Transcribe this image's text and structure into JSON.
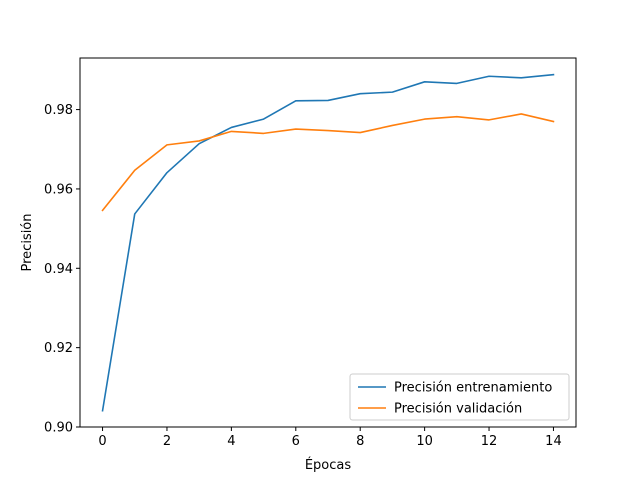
{
  "chart_data": {
    "type": "line",
    "title": "",
    "xlabel": "Épocas",
    "ylabel": "Precisión",
    "xlim": [
      -0.7,
      14.7
    ],
    "ylim": [
      0.9,
      0.993
    ],
    "xticks": [
      0,
      2,
      4,
      6,
      8,
      10,
      12,
      14
    ],
    "yticks": [
      0.9,
      0.92,
      0.94,
      0.96,
      0.98
    ],
    "ytick_labels": [
      "0.90",
      "0.92",
      "0.94",
      "0.96",
      "0.98"
    ],
    "grid": false,
    "legend_position": "lower-right",
    "x": [
      0,
      1,
      2,
      3,
      4,
      5,
      6,
      7,
      8,
      9,
      10,
      11,
      12,
      13,
      14
    ],
    "series": [
      {
        "name": "Precisión entrenamiento",
        "color": "#1f77b4",
        "values": [
          0.9041,
          0.9537,
          0.9641,
          0.9714,
          0.9755,
          0.9776,
          0.9822,
          0.9823,
          0.984,
          0.9844,
          0.987,
          0.9866,
          0.9884,
          0.988,
          0.9888
        ]
      },
      {
        "name": "Precisión validación",
        "color": "#ff7f0e",
        "values": [
          0.9546,
          0.9647,
          0.9711,
          0.9721,
          0.9745,
          0.974,
          0.9751,
          0.9747,
          0.9742,
          0.976,
          0.9776,
          0.9782,
          0.9774,
          0.9789,
          0.977
        ]
      }
    ]
  }
}
